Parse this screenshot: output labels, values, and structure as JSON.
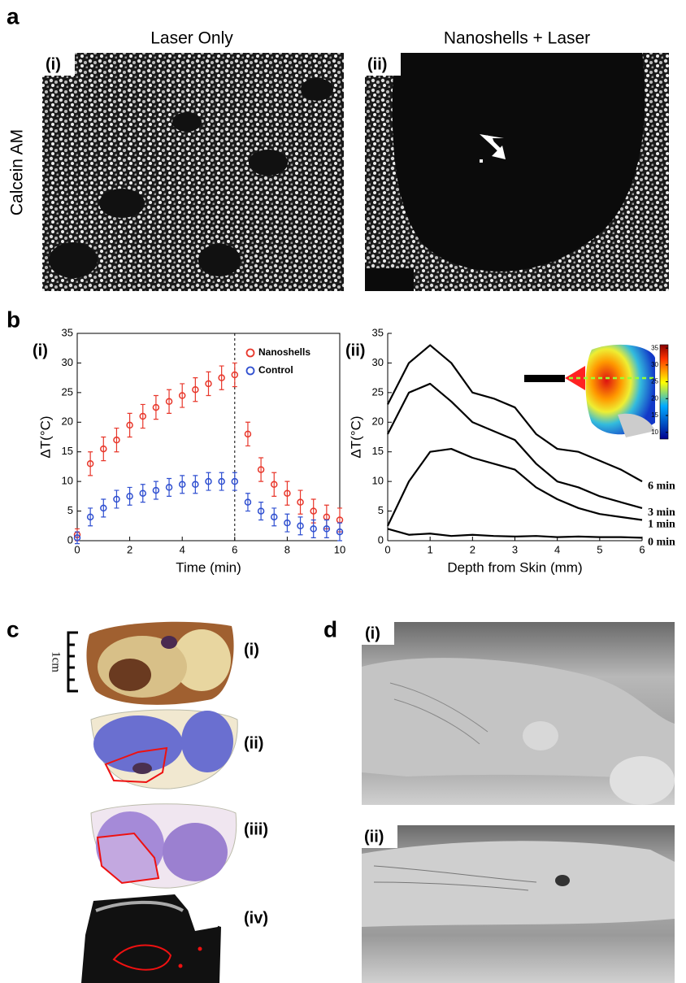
{
  "panel_a": {
    "label": "a",
    "titles": [
      "Laser Only",
      "Nanoshells + Laser"
    ],
    "row_label": "Calcein AM",
    "image_labels": [
      "(i)",
      "(ii)"
    ]
  },
  "panel_b": {
    "label": "b"
  },
  "chart_data": [
    {
      "type": "errorscatter",
      "panel_label": "(i)",
      "xlabel": "Time (min)",
      "ylabel": "ΔT(°C)",
      "x": [
        0,
        0.5,
        1,
        1.5,
        2,
        2.5,
        3,
        3.5,
        4,
        4.5,
        5,
        5.5,
        6,
        6.5,
        7,
        7.5,
        8,
        8.5,
        9,
        9.5,
        10
      ],
      "series": [
        {
          "name": "Nanoshells",
          "color": "#e8372b",
          "values": [
            1,
            13,
            15.5,
            17,
            19.5,
            21,
            22.5,
            23.5,
            24.5,
            25.5,
            26.5,
            27.5,
            28,
            18,
            12,
            9.5,
            8,
            6.5,
            5,
            4,
            3.5
          ],
          "errors": [
            1,
            2,
            2,
            2,
            2,
            2,
            2,
            2,
            2,
            2,
            2,
            2,
            2,
            2,
            2,
            2,
            2,
            2,
            2,
            2,
            2
          ]
        },
        {
          "name": "Control",
          "color": "#2f4fd0",
          "values": [
            0.5,
            4,
            5.5,
            7,
            7.5,
            8,
            8.5,
            9,
            9.5,
            9.5,
            10,
            10,
            10,
            6.5,
            5,
            4,
            3,
            2.5,
            2,
            2,
            1.5
          ],
          "errors": [
            1,
            1.5,
            1.5,
            1.5,
            1.5,
            1.5,
            1.5,
            1.5,
            1.5,
            1.5,
            1.5,
            1.5,
            1.5,
            1.5,
            1.5,
            1.5,
            1.5,
            1.5,
            1.5,
            1.5,
            1.5
          ]
        }
      ],
      "xlim": [
        0,
        10
      ],
      "ylim": [
        0,
        35
      ],
      "xticks": [
        0,
        2,
        4,
        6,
        8,
        10
      ],
      "yticks": [
        0,
        5,
        10,
        15,
        20,
        25,
        30,
        35
      ],
      "vline": 6,
      "legend": "upper right"
    },
    {
      "type": "line",
      "panel_label": "(ii)",
      "xlabel": "Depth from Skin (mm)",
      "ylabel": "ΔT(°C)",
      "x": [
        0,
        0.5,
        1,
        1.5,
        2,
        2.5,
        3,
        3.5,
        4,
        4.5,
        5,
        5.5,
        6
      ],
      "series": [
        {
          "name": "6 min",
          "color": "#000000",
          "values": [
            23,
            30,
            33,
            30,
            25,
            24,
            22.5,
            18,
            15.5,
            15,
            13.5,
            12,
            10
          ]
        },
        {
          "name": "3 min",
          "color": "#000000",
          "values": [
            18,
            25,
            26.5,
            23.5,
            20,
            18.5,
            17,
            13,
            10,
            9,
            7.5,
            6.5,
            5.5
          ]
        },
        {
          "name": "1 min",
          "color": "#000000",
          "values": [
            2.5,
            10,
            15,
            15.5,
            14,
            13,
            12,
            9,
            7,
            5.5,
            4.5,
            4,
            3.5
          ]
        },
        {
          "name": "0 min",
          "color": "#000000",
          "values": [
            2,
            1,
            1.2,
            0.8,
            1,
            0.8,
            0.7,
            0.8,
            0.6,
            0.7,
            0.6,
            0.6,
            0.5
          ]
        }
      ],
      "xlim": [
        0,
        6
      ],
      "ylim": [
        0,
        35
      ],
      "xticks": [
        0,
        1,
        2,
        3,
        4,
        5,
        6
      ],
      "yticks": [
        0,
        5,
        10,
        15,
        20,
        25,
        30,
        35
      ],
      "inset_colorbar": {
        "lim": [
          8,
          36
        ],
        "ticks": [
          10,
          15,
          20,
          25,
          30,
          35
        ]
      }
    }
  ],
  "panel_c": {
    "label": "c",
    "scale_label": "1cm",
    "image_labels": [
      "(i)",
      "(ii)",
      "(iii)",
      "(iv)"
    ]
  },
  "panel_d": {
    "label": "d",
    "image_labels": [
      "(i)",
      "(ii)"
    ]
  }
}
